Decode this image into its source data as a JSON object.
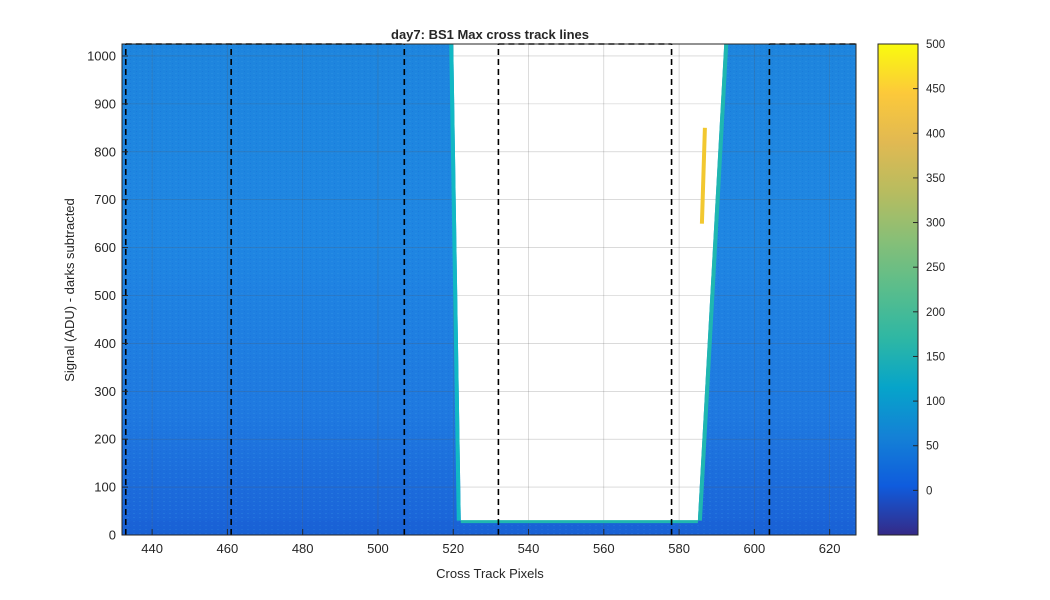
{
  "chart_data": {
    "type": "heatmap",
    "title": "day7: BS1  Max cross track lines",
    "xlabel": "Cross Track Pixels",
    "ylabel": "Signal (ADU) - darks subtracted",
    "xlim": [
      432,
      627
    ],
    "ylim": [
      0,
      1025
    ],
    "x_ticks": [
      440,
      460,
      480,
      500,
      520,
      540,
      560,
      580,
      600,
      620
    ],
    "y_ticks": [
      0,
      100,
      200,
      300,
      400,
      500,
      600,
      700,
      800,
      900,
      1000
    ],
    "grid": true,
    "colormap": "parula",
    "colorbar": {
      "limits": [
        -50,
        500
      ],
      "ticks": [
        0,
        50,
        100,
        150,
        200,
        250,
        300,
        350,
        400,
        450,
        500
      ]
    },
    "saturated_region": {
      "x_left_at_bottom": 522,
      "x_left_at_top": 520,
      "x_right_at_bottom": 585,
      "x_right_at_top": 592,
      "y_bottom": 30
    },
    "dashed_lines": [
      {
        "x": 433,
        "y_top": 1025
      },
      {
        "x": 461,
        "y_top": 1025
      },
      {
        "x": 507,
        "y_top": 1025
      },
      {
        "x": 532,
        "y_top": 1025
      },
      {
        "x": 578,
        "y_top": 1025
      },
      {
        "x": 604,
        "y_top": 1025
      }
    ],
    "dashed_top_segments": [
      [
        433,
        507
      ],
      [
        532,
        578
      ],
      [
        604,
        627
      ]
    ]
  }
}
